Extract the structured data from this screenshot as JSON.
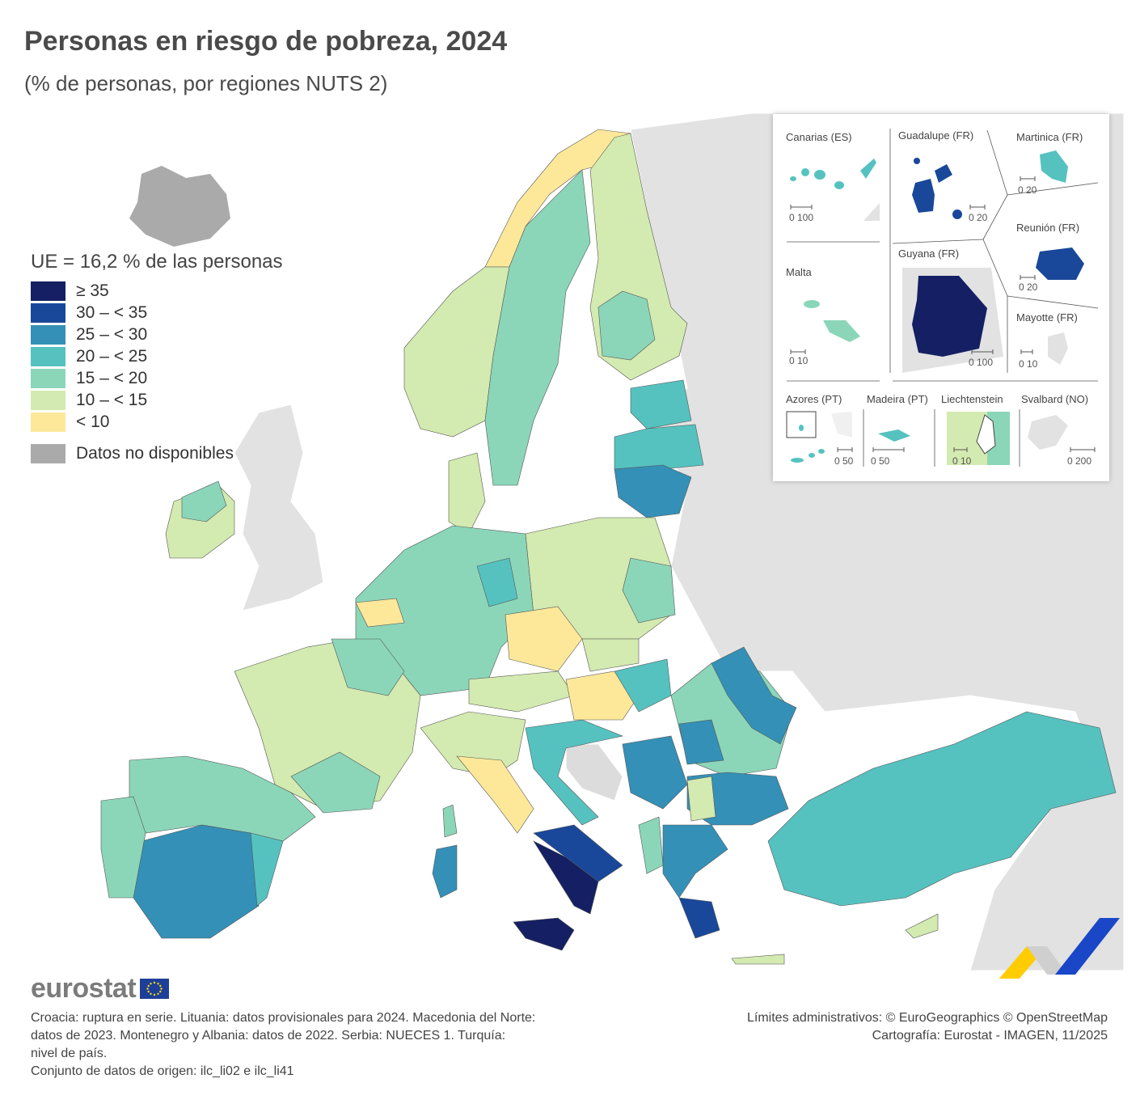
{
  "title": "Personas en riesgo de pobreza, 2024",
  "subtitle": "(% de personas, por regiones NUTS 2)",
  "legend": {
    "title": "UE = 16,2 % de las personas",
    "classes": [
      {
        "label": "≥ 35",
        "color": "#142063"
      },
      {
        "label": "30 – < 35",
        "color": "#19489a"
      },
      {
        "label": "25 – < 30",
        "color": "#3490b6"
      },
      {
        "label": "20 – < 25",
        "color": "#55c2c0"
      },
      {
        "label": "15 – < 20",
        "color": "#8bd6b9"
      },
      {
        "label": "10 – < 15",
        "color": "#d3eab0"
      },
      {
        "label": "< 10",
        "color": "#fde89a"
      }
    ],
    "na_label": "Datos no disponibles",
    "na_color": "#aaaaaa"
  },
  "insets": {
    "canarias": "Canarias (ES)",
    "guadalupe": "Guadalupe (FR)",
    "martinica": "Martinica (FR)",
    "reunion": "Reunión (FR)",
    "malta": "Malta",
    "guyana": "Guyana (FR)",
    "mayotte": "Mayotte (FR)",
    "azores": "Azores (PT)",
    "madeira": "Madeira (PT)",
    "liechtenstein": "Liechtenstein",
    "svalbard": "Svalbard (NO)",
    "scales": {
      "canarias": "0  100",
      "guadalupe": "0  20",
      "martinica": "0  20",
      "reunion": "0  20",
      "malta": "0  10",
      "guyana": "0    100",
      "mayotte": "0 10",
      "azores": "0  50",
      "madeira": "0      50",
      "liechtenstein": "0   10",
      "svalbard": "0     200"
    }
  },
  "logo": "eurostat",
  "footnote": {
    "lines": [
      "Croacia: ruptura en serie. Lituania: datos provisionales para 2024. Macedonia del Norte:",
      "datos de 2023. Montenegro y Albania: datos de 2022. Serbia: NUECES 1. Turquía:",
      "nivel de país.",
      "Conjunto de datos de origen: ilc_li02 e ilc_li41"
    ]
  },
  "credits": {
    "lines": [
      "Límites administrativos: © EuroGeographics © OpenStreetMap",
      "Cartografía: Eurostat - IMAGEN, 11/2025"
    ]
  }
}
